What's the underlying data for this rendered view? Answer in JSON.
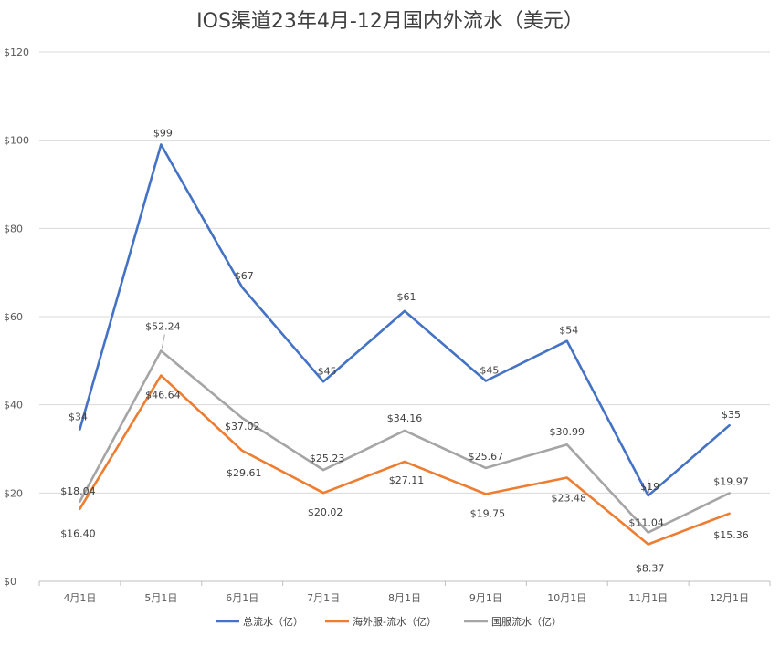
{
  "chart_data": {
    "type": "line",
    "title": "IOS渠道23年4月-12月国内外流水（美元）",
    "xlabel": "",
    "ylabel": "",
    "categories": [
      "4月1日",
      "5月1日",
      "6月1日",
      "7月1日",
      "8月1日",
      "9月1日",
      "10月1日",
      "11月1日",
      "12月1日"
    ],
    "ylim": [
      0,
      120
    ],
    "yticks": [
      0,
      20,
      40,
      60,
      80,
      100,
      120
    ],
    "ytick_labels": [
      "$0",
      "$20",
      "$40",
      "$60",
      "$80",
      "$100",
      "$120"
    ],
    "grid": true,
    "legend_position": "bottom",
    "series": [
      {
        "name": "总流水（亿）",
        "color": "#4472C4",
        "values": [
          34.44,
          99.0,
          66.63,
          45.25,
          61.27,
          45.42,
          54.47,
          19.41,
          35.33
        ],
        "labels": [
          "$34",
          "$99",
          "$67",
          "$45",
          "$61",
          "$45",
          "$54",
          "$19",
          "$35"
        ]
      },
      {
        "name": "海外服-流水（亿）",
        "color": "#ED7D31",
        "values": [
          16.4,
          46.64,
          29.61,
          20.02,
          27.11,
          19.75,
          23.48,
          8.37,
          15.36
        ],
        "labels": [
          "$16.40",
          "$46.64",
          "$29.61",
          "$20.02",
          "$27.11",
          "$19.75",
          "$23.48",
          "$8.37",
          "$15.36"
        ]
      },
      {
        "name": "国服流水（亿）",
        "color": "#A5A5A5",
        "values": [
          18.04,
          52.24,
          37.02,
          25.23,
          34.16,
          25.67,
          30.99,
          11.04,
          19.97
        ],
        "labels": [
          "$18.04",
          "$52.24",
          "$37.02",
          "$25.23",
          "$34.16",
          "$25.67",
          "$30.99",
          "$11.04",
          "$19.97"
        ]
      }
    ]
  }
}
